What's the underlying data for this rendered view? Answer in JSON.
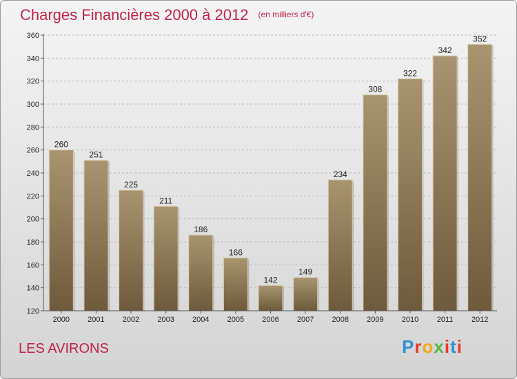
{
  "title": "Charges Financières 2000 à 2012",
  "subtitle": "(en milliers d'€)",
  "location": "LES AVIRONS",
  "logo_text": "Proxiti",
  "colors": {
    "title": "#c0224a",
    "bar_top": "#a8956f",
    "bar_bottom": "#6e5a3c"
  },
  "chart_data": {
    "type": "bar",
    "title": "Charges Financières 2000 à 2012",
    "subtitle": "(en milliers d'€)",
    "xlabel": "",
    "ylabel": "",
    "categories": [
      "2000",
      "2001",
      "2002",
      "2003",
      "2004",
      "2005",
      "2006",
      "2007",
      "2008",
      "2009",
      "2010",
      "2011",
      "2012"
    ],
    "values": [
      260,
      251,
      225,
      211,
      186,
      166,
      142,
      149,
      234,
      308,
      322,
      342,
      352
    ],
    "ylim": [
      120,
      360
    ],
    "yticks": [
      120,
      140,
      160,
      180,
      200,
      220,
      240,
      260,
      280,
      300,
      320,
      340,
      360
    ],
    "grid": true,
    "legend": "none"
  }
}
